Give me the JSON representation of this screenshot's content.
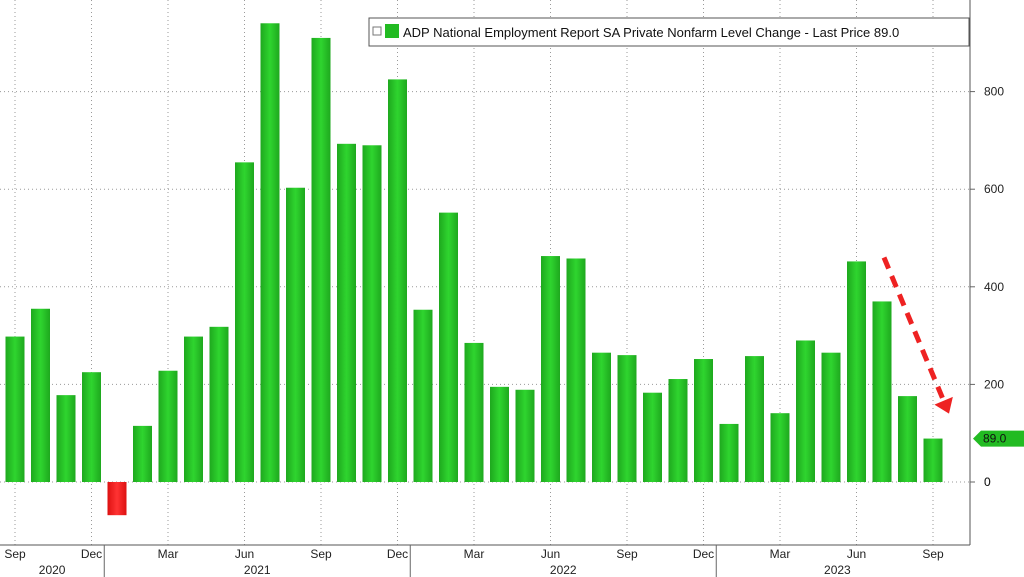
{
  "chart_data": {
    "type": "bar",
    "legend": {
      "text": "ADP National Employment Report SA Private Nonfarm Level Change - Last Price 89.0",
      "placement": "top-right",
      "swatch_color": "#22bb22"
    },
    "last_value_label": "89.0",
    "y_axis": {
      "side": "right",
      "ylim": [
        -120,
        960
      ],
      "ticks": [
        0,
        200,
        400,
        600,
        800
      ]
    },
    "grid": "dotted",
    "month_ticks": [
      "Sep",
      "Dec",
      "Mar",
      "Jun",
      "Sep",
      "Dec",
      "Mar",
      "Jun",
      "Sep",
      "Dec",
      "Mar",
      "Jun",
      "Sep"
    ],
    "years": [
      "2020",
      "2021",
      "2022",
      "2023"
    ],
    "values": [
      298,
      355,
      178,
      225,
      -68,
      115,
      228,
      298,
      318,
      655,
      940,
      603,
      910,
      693,
      690,
      825,
      353,
      552,
      285,
      195,
      189,
      463,
      458,
      265,
      260,
      183,
      211,
      252,
      119,
      258,
      141,
      290,
      265,
      452,
      370,
      176,
      89
    ],
    "colors": {
      "positive": "#22bb22",
      "negative": "#ee2222",
      "trend_arrow": "#ee2222"
    },
    "annotation": {
      "type": "trend-arrow",
      "from_bar": 34,
      "to_bar": 36
    }
  }
}
